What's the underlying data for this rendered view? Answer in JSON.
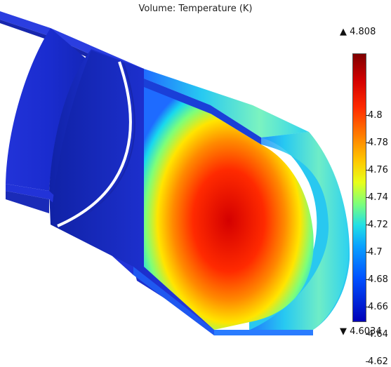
{
  "title": "Volume: Temperature (K)",
  "legend": {
    "max_label": "▲ 4.808",
    "min_label": "▼ 4.6034",
    "ticks": [
      "4.8",
      "4.78",
      "4.76",
      "4.74",
      "4.72",
      "4.7",
      "4.68",
      "4.66",
      "4.64",
      "4.62"
    ]
  },
  "colors": {
    "cold": "#1b2fd6",
    "hot": "#e60f00",
    "background": "#ffffff"
  }
}
